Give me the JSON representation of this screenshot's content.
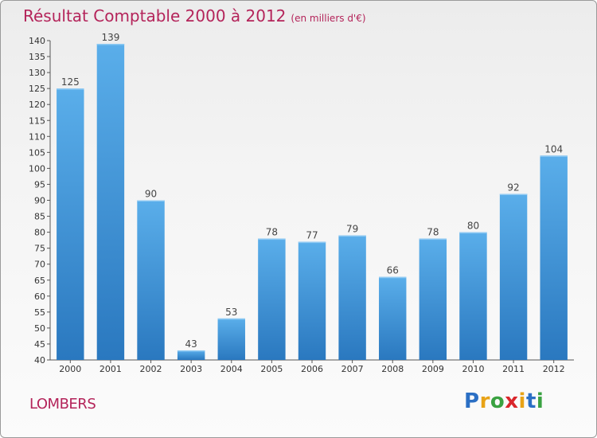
{
  "title": "Résultat Comptable 2000 à 2012",
  "subtitle": "(en milliers d'€)",
  "commune": "LOMBERS",
  "logo": {
    "letters": [
      "P",
      "r",
      "o",
      "x",
      "i",
      "t",
      "i"
    ],
    "colors": [
      "#2b6fc4",
      "#e8a317",
      "#3aa241",
      "#d9262b",
      "#e8a317",
      "#2b6fc4",
      "#3aa241"
    ]
  },
  "chart_data": {
    "type": "bar",
    "categories": [
      "2000",
      "2001",
      "2002",
      "2003",
      "2004",
      "2005",
      "2006",
      "2007",
      "2008",
      "2009",
      "2010",
      "2011",
      "2012"
    ],
    "values": [
      125,
      139,
      90,
      43,
      53,
      78,
      77,
      79,
      66,
      78,
      80,
      92,
      104
    ],
    "title": "Résultat Comptable 2000 à 2012",
    "ylim": [
      40,
      140
    ],
    "yticks": [
      40,
      45,
      50,
      55,
      60,
      65,
      70,
      75,
      80,
      85,
      90,
      95,
      100,
      105,
      110,
      115,
      120,
      125,
      130,
      135,
      140
    ],
    "grid": false,
    "bar_color": "#3b8fd6"
  }
}
